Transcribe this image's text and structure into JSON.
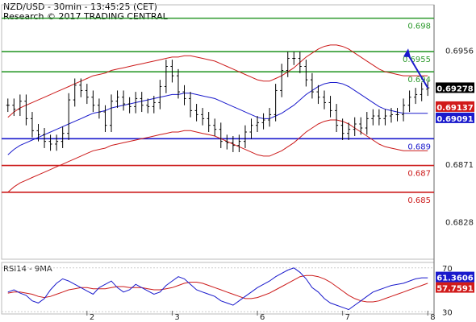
{
  "header": {
    "line1": "NZD/USD - 30min - 13:45:25 (CET)",
    "line2": "Research © 2017 TRADING CENTRAL"
  },
  "chart_data": [
    {
      "type": "candlestick",
      "instrument": "NZD/USD",
      "timeframe": "30min",
      "ylim": [
        0.68,
        0.699
      ],
      "yticks": [
        0.6956,
        0.6871,
        0.6828
      ],
      "x_day_labels": [
        {
          "label": "2",
          "index": 13
        },
        {
          "label": "3",
          "index": 27
        },
        {
          "label": "6",
          "index": 41
        },
        {
          "label": "7",
          "index": 55
        },
        {
          "label": "8",
          "index": 69
        }
      ],
      "levels": [
        {
          "label": "0.698",
          "value": 0.698,
          "color": "#2e9a2e"
        },
        {
          "label": "0.6955",
          "value": 0.6955,
          "color": "#2e9a2e"
        },
        {
          "label": "0.694",
          "value": 0.694,
          "color": "#2e9a2e"
        },
        {
          "label": "0.689",
          "value": 0.689,
          "color": "#1a1acc"
        },
        {
          "label": "0.687",
          "value": 0.687,
          "color": "#cc1a1a"
        },
        {
          "label": "0.685",
          "value": 0.685,
          "color": "#cc1a1a"
        }
      ],
      "price_tags": [
        {
          "label": "0.69278",
          "value": 0.69278,
          "bg": "#000000"
        },
        {
          "label": "0.69137",
          "value": 0.69137,
          "bg": "#d11a1a"
        },
        {
          "label": "0.69091",
          "value": 0.69091,
          "bg": "#1a1acc"
        }
      ],
      "close": [
        0.6915,
        0.6912,
        0.6918,
        0.6905,
        0.6896,
        0.6893,
        0.6888,
        0.6886,
        0.6888,
        0.6894,
        0.6919,
        0.693,
        0.6926,
        0.6921,
        0.6915,
        0.691,
        0.69,
        0.6918,
        0.6921,
        0.6916,
        0.6914,
        0.692,
        0.6915,
        0.6914,
        0.6917,
        0.6929,
        0.6944,
        0.6937,
        0.6925,
        0.692,
        0.6911,
        0.6908,
        0.6905,
        0.69,
        0.6897,
        0.6888,
        0.6887,
        0.6885,
        0.6888,
        0.6895,
        0.69,
        0.6902,
        0.6904,
        0.6908,
        0.6926,
        0.6941,
        0.695,
        0.695,
        0.6944,
        0.6934,
        0.6925,
        0.6921,
        0.6917,
        0.6911,
        0.69,
        0.6894,
        0.6897,
        0.6901,
        0.6898,
        0.6905,
        0.6907,
        0.6905,
        0.6907,
        0.6908,
        0.6908,
        0.6915,
        0.6921,
        0.6923,
        0.6927,
        0.6928
      ],
      "spread": 0.001,
      "ma": [
        0.6878,
        0.6882,
        0.6885,
        0.6887,
        0.6889,
        0.6891,
        0.6893,
        0.6895,
        0.6897,
        0.6899,
        0.6901,
        0.6903,
        0.6905,
        0.6907,
        0.6909,
        0.691,
        0.6911,
        0.6913,
        0.6914,
        0.6915,
        0.6916,
        0.6917,
        0.6918,
        0.6919,
        0.692,
        0.6921,
        0.6922,
        0.6923,
        0.6923,
        0.6924,
        0.6924,
        0.6923,
        0.6922,
        0.6921,
        0.692,
        0.6918,
        0.6916,
        0.6914,
        0.6912,
        0.691,
        0.6908,
        0.6906,
        0.6905,
        0.6905,
        0.6907,
        0.6909,
        0.6912,
        0.6915,
        0.6919,
        0.6923,
        0.6926,
        0.6929,
        0.6931,
        0.6932,
        0.6932,
        0.6931,
        0.6929,
        0.6926,
        0.6923,
        0.692,
        0.6917,
        0.6914,
        0.6912,
        0.6911,
        0.691,
        0.6909,
        0.6909,
        0.6909,
        0.6909,
        0.6909
      ],
      "bb_upper_offset": 0.0028,
      "bb_lower_offset": 0.0028,
      "projection": {
        "from_index": 69,
        "to_value": 0.6955,
        "to_x_extra": 6
      }
    },
    {
      "type": "line",
      "title": "RSI14 - 9MA",
      "ylim": [
        28,
        75
      ],
      "yticks": [
        70,
        30
      ],
      "rsi": [
        48,
        50,
        47,
        45,
        40,
        38,
        42,
        50,
        56,
        60,
        58,
        55,
        52,
        49,
        46,
        52,
        55,
        58,
        52,
        48,
        50,
        55,
        52,
        49,
        46,
        48,
        54,
        58,
        62,
        60,
        55,
        50,
        48,
        46,
        44,
        40,
        38,
        36,
        40,
        44,
        48,
        52,
        55,
        58,
        62,
        65,
        68,
        70,
        66,
        60,
        52,
        48,
        42,
        38,
        36,
        34,
        32,
        36,
        40,
        44,
        48,
        50,
        52,
        54,
        55,
        56,
        58,
        60,
        61,
        61
      ],
      "rsi_ma": [
        47,
        48,
        48,
        47,
        46,
        44,
        43,
        44,
        46,
        48,
        50,
        51,
        52,
        52,
        51,
        51,
        51,
        52,
        53,
        53,
        52,
        52,
        52,
        51,
        50,
        50,
        51,
        52,
        54,
        56,
        57,
        57,
        56,
        54,
        52,
        50,
        48,
        46,
        44,
        42,
        42,
        43,
        45,
        47,
        50,
        53,
        56,
        59,
        62,
        63,
        63,
        62,
        60,
        57,
        53,
        49,
        45,
        42,
        40,
        39,
        39,
        40,
        42,
        44,
        46,
        48,
        50,
        52,
        54,
        56
      ],
      "price_tags": [
        {
          "label": "61.3606",
          "value": 61.3606,
          "bg": "#1a1acc"
        },
        {
          "label": "57.7591",
          "value": 57.7591,
          "bg": "#d11a1a"
        }
      ]
    }
  ]
}
